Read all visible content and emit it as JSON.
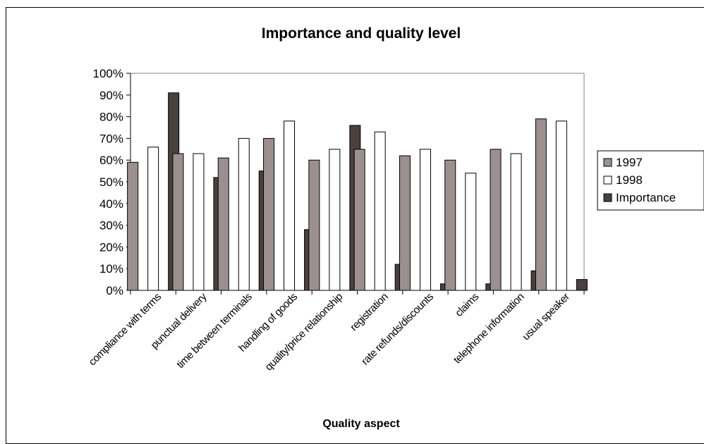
{
  "chart_data": {
    "type": "bar",
    "title": "Importance and quality level",
    "xlabel": "Quality aspect",
    "ylabel": "",
    "ylim": [
      0,
      100
    ],
    "y_ticks": [
      "0%",
      "10%",
      "20%",
      "30%",
      "40%",
      "50%",
      "60%",
      "70%",
      "80%",
      "90%",
      "100%"
    ],
    "grid": false,
    "legend_position": "right",
    "categories": [
      "compliance with terms",
      "punctual delivery",
      "time between terminals",
      "handling of goods",
      "quality/price relationship",
      "registration",
      "rate refunds/discounts",
      "claims",
      "telephone information",
      "usual speaker"
    ],
    "series": [
      {
        "name": "1997",
        "color": "#9c8f8f",
        "values": [
          59,
          63,
          61,
          70,
          60,
          65,
          62,
          60,
          65,
          79
        ]
      },
      {
        "name": "1998",
        "color": "#ffffff",
        "values": [
          66,
          63,
          70,
          78,
          65,
          73,
          65,
          54,
          63,
          78
        ]
      },
      {
        "name": "Importance",
        "color": "#4a4040",
        "values": [
          91,
          52,
          55,
          28,
          76,
          12,
          3,
          3,
          9,
          5
        ]
      }
    ]
  }
}
